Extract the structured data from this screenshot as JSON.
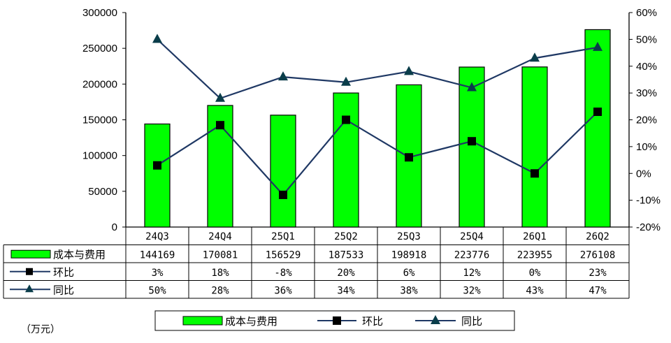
{
  "chart_data": {
    "type": "bar",
    "categories": [
      "24Q3",
      "24Q4",
      "25Q1",
      "25Q2",
      "25Q3",
      "25Q4",
      "26Q1",
      "26Q2"
    ],
    "ylim": [
      0,
      300000
    ],
    "yticks": [
      "300000",
      "250000",
      "200000",
      "150000",
      "100000",
      "50000",
      "0"
    ],
    "y2lim": [
      -20,
      60
    ],
    "y2ticks": [
      "60%",
      "50%",
      "40%",
      "30%",
      "20%",
      "10%",
      "0%",
      "-10%",
      "-20%"
    ],
    "series": [
      {
        "name": "成本与费用",
        "kind": "bar",
        "axis": "left",
        "values": [
          144169,
          170081,
          156529,
          187533,
          198918,
          223776,
          223955,
          276108
        ],
        "labels": [
          "144169",
          "170081",
          "156529",
          "187533",
          "198918",
          "223776",
          "223955",
          "276108"
        ],
        "color": "#00ff00",
        "edge": "#000000"
      },
      {
        "name": "环比",
        "kind": "line",
        "marker": "square",
        "axis": "right",
        "values": [
          3,
          18,
          -8,
          20,
          6,
          12,
          0,
          23
        ],
        "labels": [
          "3%",
          "18%",
          "-8%",
          "20%",
          "6%",
          "12%",
          "0%",
          "23%"
        ],
        "color": "#1f3864"
      },
      {
        "name": "同比",
        "kind": "line",
        "marker": "triangle",
        "axis": "right",
        "values": [
          50,
          28,
          36,
          34,
          38,
          32,
          43,
          47
        ],
        "labels": [
          "50%",
          "28%",
          "36%",
          "34%",
          "38%",
          "32%",
          "43%",
          "47%"
        ],
        "color": "#1f3864"
      }
    ],
    "legend": "bottom",
    "grid": false
  },
  "unit_note": "（万元）"
}
